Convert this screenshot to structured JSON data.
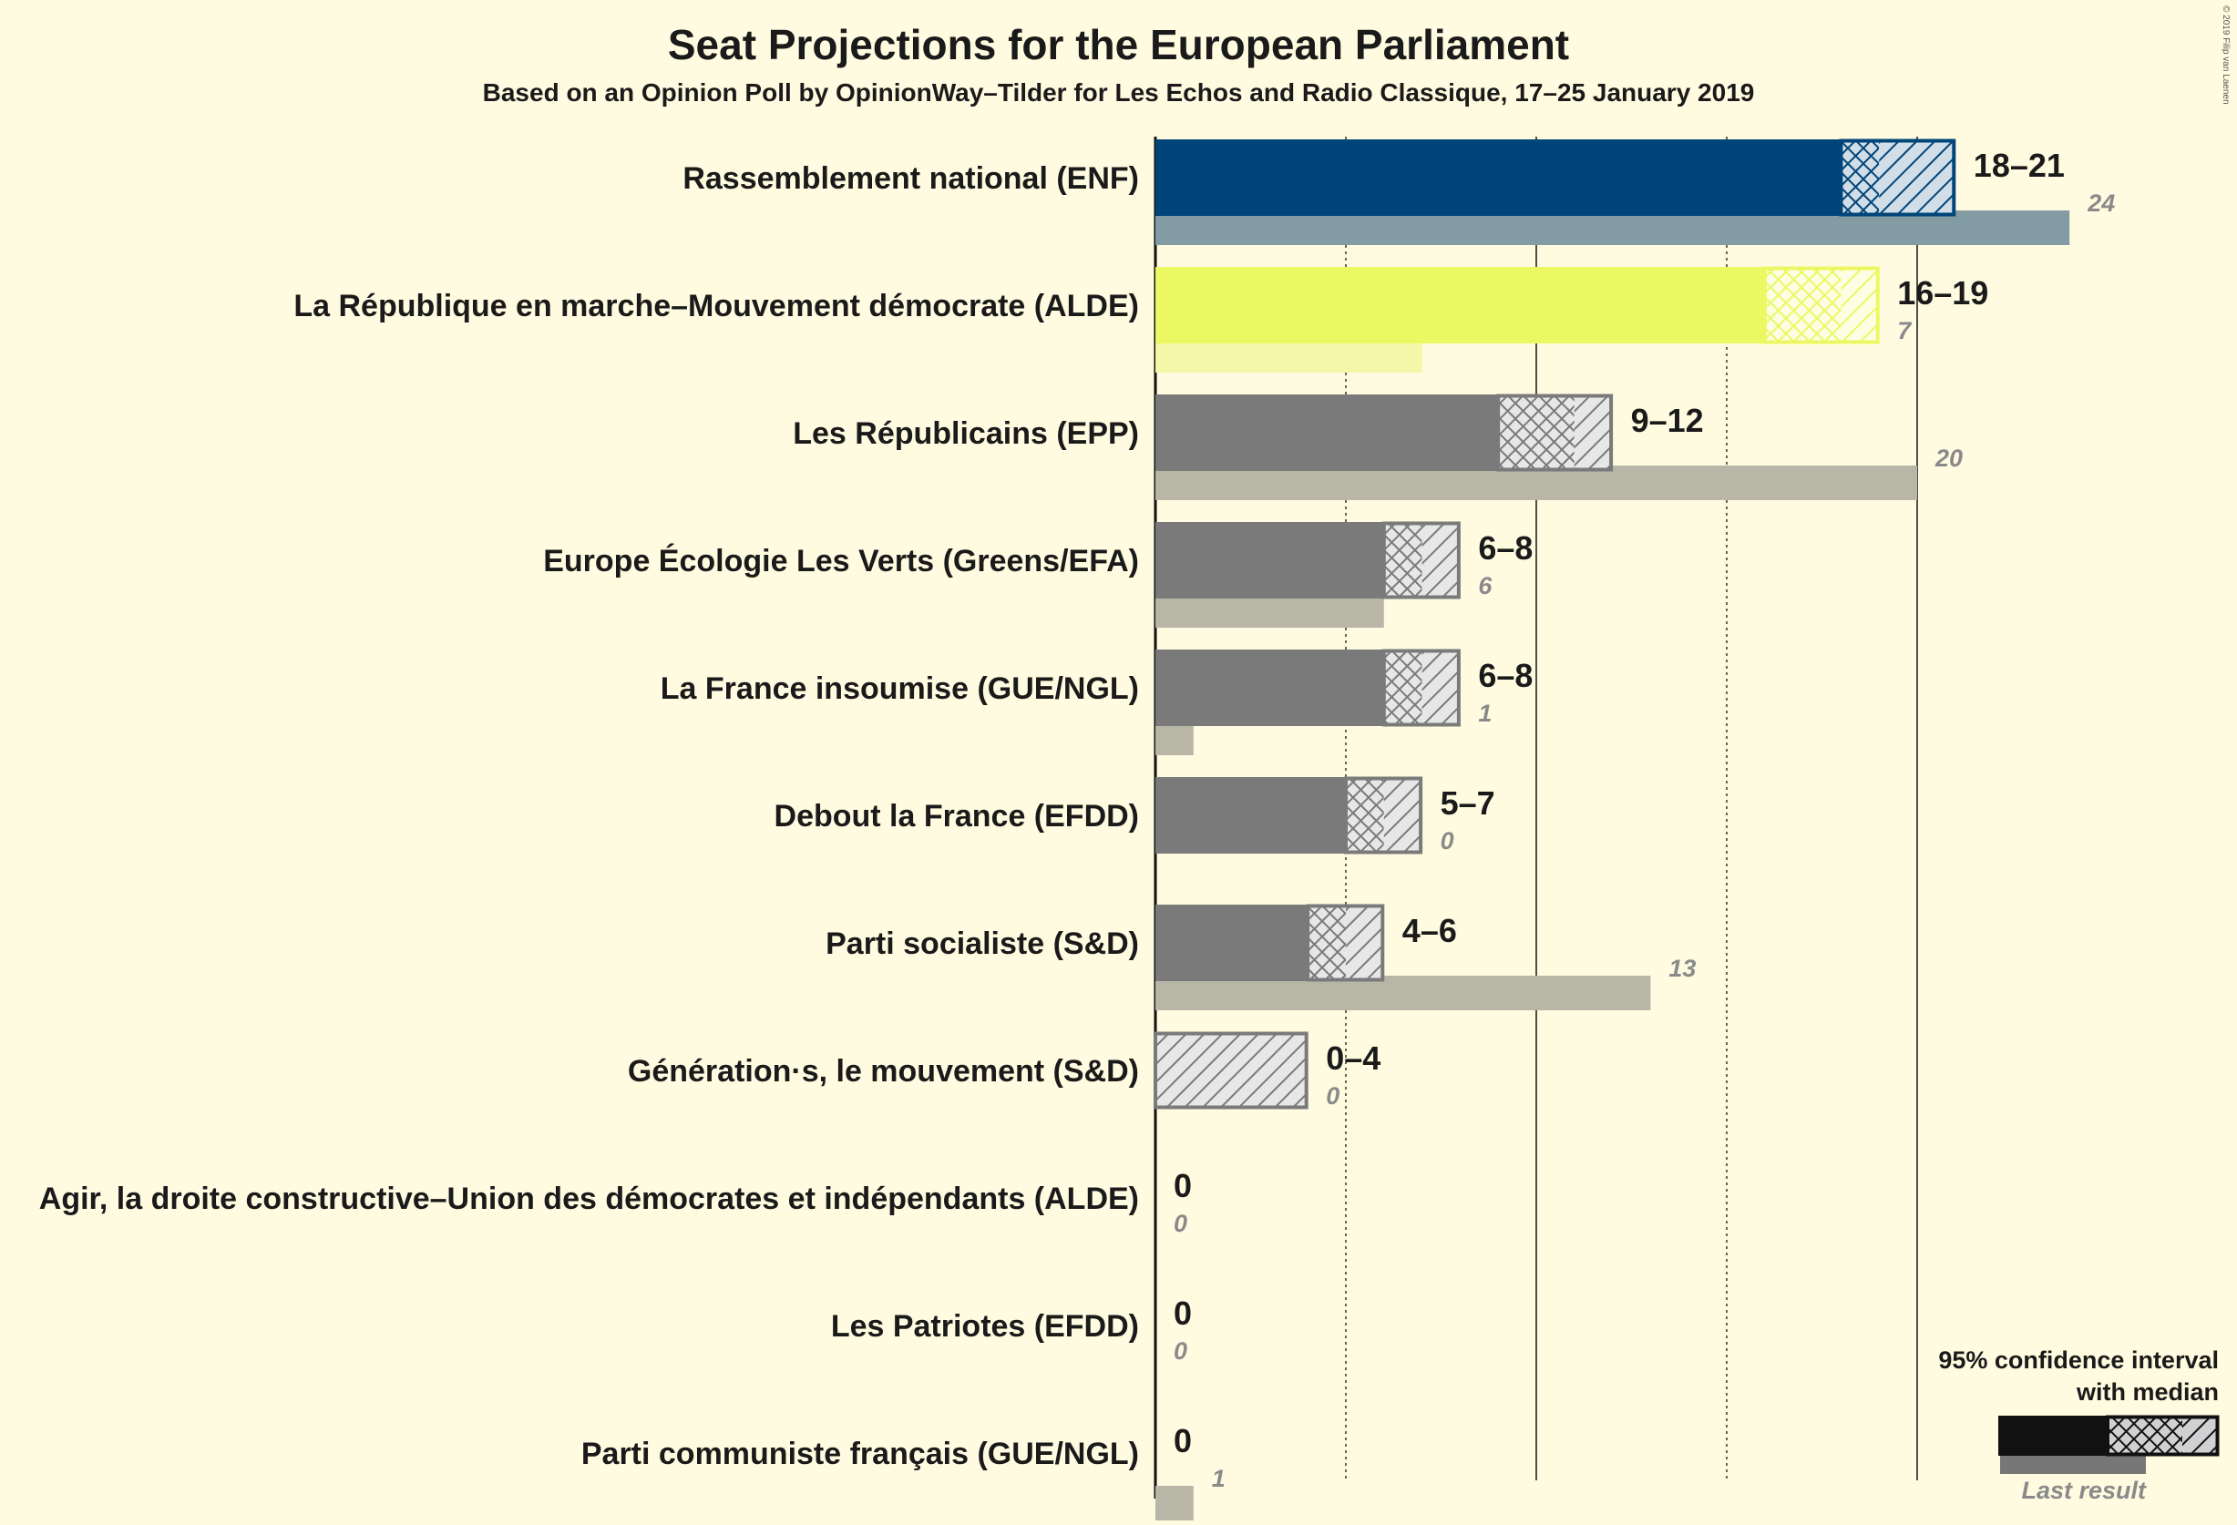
{
  "chart_data": {
    "type": "bar",
    "title": "Seat Projections for the European Parliament",
    "subtitle": "Based on an Opinion Poll by OpinionWay–Tilder for Les Echos and Radio Classique, 17–25 January 2019",
    "xlim": [
      0,
      24
    ],
    "grid": true,
    "legend_position": "bottom-right",
    "copyright": "© 2019 Filip van Laenen",
    "parties": [
      {
        "name": "Rassemblement national (ENF)",
        "low": 18,
        "median": 19,
        "high": 21,
        "range_label": "18–21",
        "last": 24,
        "last_label": "24",
        "color": "#00457a",
        "last_color": "#839ba2"
      },
      {
        "name": "La République en marche–Mouvement démocrate (ALDE)",
        "low": 16,
        "median": 18,
        "high": 19,
        "range_label": "16–19",
        "last": 7,
        "last_label": "7",
        "color": "#ecf862",
        "last_color": "#f5f7a8"
      },
      {
        "name": "Les Républicains (EPP)",
        "low": 9,
        "median": 11,
        "high": 12,
        "range_label": "9–12",
        "last": 20,
        "last_label": "20",
        "color": "#7a7a7a",
        "last_color": "#b8b6a6"
      },
      {
        "name": "Europe Écologie Les Verts (Greens/EFA)",
        "low": 6,
        "median": 7,
        "high": 8,
        "range_label": "6–8",
        "last": 6,
        "last_label": "6",
        "color": "#7a7a7a",
        "last_color": "#b8b6a6"
      },
      {
        "name": "La France insoumise (GUE/NGL)",
        "low": 6,
        "median": 7,
        "high": 8,
        "range_label": "6–8",
        "last": 1,
        "last_label": "1",
        "color": "#7a7a7a",
        "last_color": "#b8b6a6"
      },
      {
        "name": "Debout la France (EFDD)",
        "low": 5,
        "median": 6,
        "high": 7,
        "range_label": "5–7",
        "last": 0,
        "last_label": "0",
        "color": "#7a7a7a",
        "last_color": "#b8b6a6"
      },
      {
        "name": "Parti socialiste (S&D)",
        "low": 4,
        "median": 5,
        "high": 6,
        "range_label": "4–6",
        "last": 13,
        "last_label": "13",
        "color": "#7a7a7a",
        "last_color": "#b8b6a6"
      },
      {
        "name": "Génération·s, le mouvement (S&D)",
        "low": 0,
        "median": 0,
        "high": 4,
        "range_label": "0–4",
        "last": 0,
        "last_label": "0",
        "color": "#7a7a7a",
        "last_color": "#b8b6a6"
      },
      {
        "name": "Agir, la droite constructive–Union des démocrates et indépendants (ALDE)",
        "low": 0,
        "median": 0,
        "high": 0,
        "range_label": "0",
        "last": 0,
        "last_label": "0",
        "color": "#7a7a7a",
        "last_color": "#b8b6a6"
      },
      {
        "name": "Les Patriotes (EFDD)",
        "low": 0,
        "median": 0,
        "high": 0,
        "range_label": "0",
        "last": 0,
        "last_label": "0",
        "color": "#7a7a7a",
        "last_color": "#b8b6a6"
      },
      {
        "name": "Parti communiste français (GUE/NGL)",
        "low": 0,
        "median": 0,
        "high": 0,
        "range_label": "0",
        "last": 1,
        "last_label": "1",
        "color": "#7a7a7a",
        "last_color": "#b8b6a6"
      }
    ],
    "legend": {
      "line1": "95% confidence interval",
      "line2": "with median",
      "last_result": "Last result"
    }
  }
}
